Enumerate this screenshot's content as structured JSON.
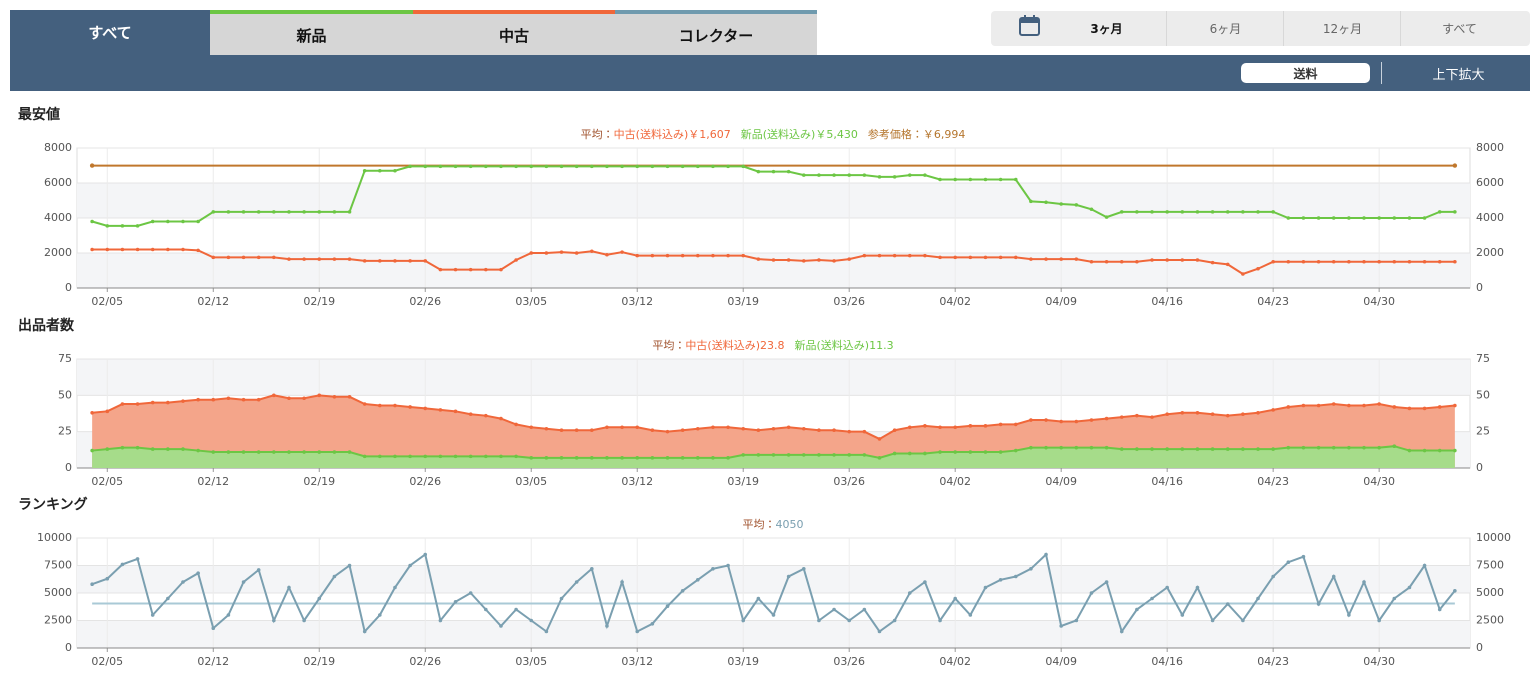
{
  "tabs": [
    "すべて",
    "新品",
    "中古",
    "コレクター"
  ],
  "ranges": [
    "3ヶ月",
    "6ヶ月",
    "12ヶ月",
    "すべて"
  ],
  "toolbar": [
    "送料",
    "上下拡大"
  ],
  "chart_data": [
    {
      "type": "line",
      "title": "最安値",
      "summary": [
        {
          "text": "平均：",
          "color": "#a0522d"
        },
        {
          "text": "中古(送料込み)￥1,607",
          "color": "#f0673a"
        },
        {
          "text": "新品(送料込み)￥5,430",
          "color": "#6cc644"
        },
        {
          "text": "参考価格：￥6,994",
          "color": "#b5762e"
        }
      ],
      "x": [
        "02/04",
        "02/05",
        "02/06",
        "02/07",
        "02/08",
        "02/09",
        "02/10",
        "02/11",
        "02/12",
        "02/13",
        "02/14",
        "02/15",
        "02/16",
        "02/17",
        "02/18",
        "02/19",
        "02/20",
        "02/21",
        "02/22",
        "02/23",
        "02/24",
        "02/25",
        "02/26",
        "02/27",
        "02/28",
        "03/01",
        "03/02",
        "03/03",
        "03/04",
        "03/05",
        "03/06",
        "03/07",
        "03/08",
        "03/09",
        "03/10",
        "03/11",
        "03/12",
        "03/13",
        "03/14",
        "03/15",
        "03/16",
        "03/17",
        "03/18",
        "03/19",
        "03/20",
        "03/21",
        "03/22",
        "03/23",
        "03/24",
        "03/25",
        "03/26",
        "03/27",
        "03/28",
        "03/29",
        "03/30",
        "03/31",
        "04/01",
        "04/02",
        "04/03",
        "04/04",
        "04/05",
        "04/06",
        "04/07",
        "04/08",
        "04/09",
        "04/10",
        "04/11",
        "04/12",
        "04/13",
        "04/14",
        "04/15",
        "04/16",
        "04/17",
        "04/18",
        "04/19",
        "04/20",
        "04/21",
        "04/22",
        "04/23",
        "04/24",
        "04/25",
        "04/26",
        "04/27",
        "04/28",
        "04/29",
        "04/30",
        "05/01",
        "05/02",
        "05/03",
        "05/04",
        "05/05"
      ],
      "series": [
        {
          "color": "#6cc644",
          "values": [
            3800,
            3550,
            3550,
            3550,
            3800,
            3800,
            3800,
            3800,
            4350,
            4350,
            4350,
            4350,
            4350,
            4350,
            4350,
            4350,
            4350,
            4350,
            6700,
            6700,
            6700,
            6950,
            6950,
            6950,
            6950,
            6950,
            6950,
            6950,
            6950,
            6950,
            6950,
            6950,
            6950,
            6950,
            6950,
            6950,
            6950,
            6950,
            6950,
            6950,
            6950,
            6950,
            6950,
            6950,
            6650,
            6650,
            6650,
            6450,
            6450,
            6450,
            6450,
            6450,
            6350,
            6350,
            6450,
            6450,
            6200,
            6200,
            6200,
            6200,
            6200,
            6200,
            4950,
            4900,
            4800,
            4750,
            4500,
            4050,
            4350,
            4350,
            4350,
            4350,
            4350,
            4350,
            4350,
            4350,
            4350,
            4350,
            4350,
            4000,
            4000,
            4000,
            4000,
            4000,
            4000,
            4000,
            4000,
            4000,
            4000,
            4350,
            4350
          ]
        },
        {
          "color": "#f0673a",
          "values": [
            2200,
            2200,
            2200,
            2200,
            2200,
            2200,
            2200,
            2150,
            1750,
            1750,
            1750,
            1750,
            1750,
            1650,
            1650,
            1650,
            1650,
            1650,
            1550,
            1550,
            1550,
            1550,
            1550,
            1050,
            1050,
            1050,
            1050,
            1050,
            1600,
            2000,
            2000,
            2050,
            2000,
            2100,
            1900,
            2050,
            1850,
            1850,
            1850,
            1850,
            1850,
            1850,
            1850,
            1850,
            1650,
            1600,
            1600,
            1550,
            1600,
            1550,
            1650,
            1850,
            1850,
            1850,
            1850,
            1850,
            1750,
            1750,
            1750,
            1750,
            1750,
            1750,
            1650,
            1650,
            1650,
            1650,
            1500,
            1500,
            1500,
            1500,
            1600,
            1600,
            1600,
            1600,
            1450,
            1350,
            800,
            1100,
            1500,
            1500,
            1500,
            1500,
            1500,
            1500,
            1500,
            1500,
            1500,
            1500,
            1500,
            1500,
            1500
          ]
        }
      ],
      "reference_price": 6994,
      "reference_color": "#c0772c",
      "xlim": [
        "02/03",
        "05/06"
      ],
      "xticks": [
        "02/05",
        "02/12",
        "02/19",
        "02/26",
        "03/05",
        "03/12",
        "03/19",
        "03/26",
        "04/02",
        "04/09",
        "04/16",
        "04/23",
        "04/30"
      ],
      "ylim": [
        0,
        8000
      ],
      "yticks": [
        0,
        2000,
        4000,
        6000,
        8000
      ],
      "grid": true,
      "bands": true
    },
    {
      "type": "area",
      "title": "出品者数",
      "summary": [
        {
          "text": "平均：",
          "color": "#a0522d"
        },
        {
          "text": "中古(送料込み)23.8",
          "color": "#f0673a"
        },
        {
          "text": "新品(送料込み)11.3",
          "color": "#6cc644"
        }
      ],
      "x": [
        "02/04",
        "02/05",
        "02/06",
        "02/07",
        "02/08",
        "02/09",
        "02/10",
        "02/11",
        "02/12",
        "02/13",
        "02/14",
        "02/15",
        "02/16",
        "02/17",
        "02/18",
        "02/19",
        "02/20",
        "02/21",
        "02/22",
        "02/23",
        "02/24",
        "02/25",
        "02/26",
        "02/27",
        "02/28",
        "03/01",
        "03/02",
        "03/03",
        "03/04",
        "03/05",
        "03/06",
        "03/07",
        "03/08",
        "03/09",
        "03/10",
        "03/11",
        "03/12",
        "03/13",
        "03/14",
        "03/15",
        "03/16",
        "03/17",
        "03/18",
        "03/19",
        "03/20",
        "03/21",
        "03/22",
        "03/23",
        "03/24",
        "03/25",
        "03/26",
        "03/27",
        "03/28",
        "03/29",
        "03/30",
        "03/31",
        "04/01",
        "04/02",
        "04/03",
        "04/04",
        "04/05",
        "04/06",
        "04/07",
        "04/08",
        "04/09",
        "04/10",
        "04/11",
        "04/12",
        "04/13",
        "04/14",
        "04/15",
        "04/16",
        "04/17",
        "04/18",
        "04/19",
        "04/20",
        "04/21",
        "04/22",
        "04/23",
        "04/24",
        "04/25",
        "04/26",
        "04/27",
        "04/28",
        "04/29",
        "04/30",
        "05/01",
        "05/02",
        "05/03",
        "05/04",
        "05/05"
      ],
      "series": [
        {
          "color": "#f0673a",
          "fill": "#f4a58a",
          "values": [
            38,
            39,
            44,
            44,
            45,
            45,
            46,
            47,
            47,
            48,
            47,
            47,
            50,
            48,
            48,
            50,
            49,
            49,
            44,
            43,
            43,
            42,
            41,
            40,
            39,
            37,
            36,
            34,
            30,
            28,
            27,
            26,
            26,
            26,
            28,
            28,
            28,
            26,
            25,
            26,
            27,
            28,
            28,
            27,
            26,
            27,
            28,
            27,
            26,
            26,
            25,
            25,
            20,
            26,
            28,
            29,
            28,
            28,
            29,
            29,
            30,
            30,
            33,
            33,
            32,
            32,
            33,
            34,
            35,
            36,
            35,
            37,
            38,
            38,
            37,
            36,
            37,
            38,
            40,
            42,
            43,
            43,
            44,
            43,
            43,
            44,
            42,
            41,
            41,
            42,
            43
          ]
        },
        {
          "color": "#6cc644",
          "fill": "#a6dc8a",
          "values": [
            12,
            13,
            14,
            14,
            13,
            13,
            13,
            12,
            11,
            11,
            11,
            11,
            11,
            11,
            11,
            11,
            11,
            11,
            8,
            8,
            8,
            8,
            8,
            8,
            8,
            8,
            8,
            8,
            8,
            7,
            7,
            7,
            7,
            7,
            7,
            7,
            7,
            7,
            7,
            7,
            7,
            7,
            7,
            9,
            9,
            9,
            9,
            9,
            9,
            9,
            9,
            9,
            7,
            10,
            10,
            10,
            11,
            11,
            11,
            11,
            11,
            12,
            14,
            14,
            14,
            14,
            14,
            14,
            13,
            13,
            13,
            13,
            13,
            13,
            13,
            13,
            13,
            13,
            13,
            14,
            14,
            14,
            14,
            14,
            14,
            14,
            15,
            12,
            12,
            12,
            12
          ]
        }
      ],
      "xlim": [
        "02/03",
        "05/06"
      ],
      "xticks": [
        "02/05",
        "02/12",
        "02/19",
        "02/26",
        "03/05",
        "03/12",
        "03/19",
        "03/26",
        "04/02",
        "04/09",
        "04/16",
        "04/23",
        "04/30"
      ],
      "ylim": [
        0,
        75
      ],
      "yticks": [
        0,
        25,
        50,
        75
      ],
      "grid": true,
      "bands": true
    },
    {
      "type": "line",
      "title": "ランキング",
      "summary": [
        {
          "text": "平均：",
          "color": "#a0522d"
        }
      ],
      "average": 4050,
      "average_color": "#7a9fb0",
      "average_line_color": "#a9c9d6",
      "x": [
        "02/04",
        "02/05",
        "02/06",
        "02/07",
        "02/08",
        "02/09",
        "02/10",
        "02/11",
        "02/12",
        "02/13",
        "02/14",
        "02/15",
        "02/16",
        "02/17",
        "02/18",
        "02/19",
        "02/20",
        "02/21",
        "02/22",
        "02/23",
        "02/24",
        "02/25",
        "02/26",
        "02/27",
        "02/28",
        "03/01",
        "03/02",
        "03/03",
        "03/04",
        "03/05",
        "03/06",
        "03/07",
        "03/08",
        "03/09",
        "03/10",
        "03/11",
        "03/12",
        "03/13",
        "03/14",
        "03/15",
        "03/16",
        "03/17",
        "03/18",
        "03/19",
        "03/20",
        "03/21",
        "03/22",
        "03/23",
        "03/24",
        "03/25",
        "03/26",
        "03/27",
        "03/28",
        "03/29",
        "03/30",
        "03/31",
        "04/01",
        "04/02",
        "04/03",
        "04/04",
        "04/05",
        "04/06",
        "04/07",
        "04/08",
        "04/09",
        "04/10",
        "04/11",
        "04/12",
        "04/13",
        "04/14",
        "04/15",
        "04/16",
        "04/17",
        "04/18",
        "04/19",
        "04/20",
        "04/21",
        "04/22",
        "04/23",
        "04/24",
        "04/25",
        "04/26",
        "04/27",
        "04/28",
        "04/29",
        "04/30",
        "05/01",
        "05/02",
        "05/03",
        "05/04",
        "05/05"
      ],
      "series": [
        {
          "color": "#7a9fb0",
          "values": [
            5800,
            6300,
            7600,
            8100,
            3000,
            4500,
            6000,
            6800,
            1800,
            3000,
            6000,
            7100,
            2500,
            5500,
            2500,
            4500,
            6500,
            7500,
            1500,
            3000,
            5500,
            7500,
            8500,
            2500,
            4200,
            5000,
            3500,
            2000,
            3500,
            2500,
            1500,
            4500,
            6000,
            7200,
            2000,
            6000,
            1500,
            2200,
            3800,
            5200,
            6200,
            7200,
            7500,
            2500,
            4500,
            3000,
            6500,
            7200,
            2500,
            3500,
            2500,
            3500,
            1500,
            2500,
            5000,
            6000,
            2500,
            4500,
            3000,
            5500,
            6200,
            6500,
            7200,
            8500,
            2000,
            2500,
            5000,
            6000,
            1500,
            3500,
            4500,
            5500,
            3000,
            5500,
            2500,
            4000,
            2500,
            4500,
            6500,
            7800,
            8300,
            4000,
            6500,
            3000,
            6000,
            2500,
            4500,
            5500,
            7500,
            3500,
            5200
          ]
        }
      ],
      "xlim": [
        "02/03",
        "05/06"
      ],
      "xticks": [
        "02/05",
        "02/12",
        "02/19",
        "02/26",
        "03/05",
        "03/12",
        "03/19",
        "03/26",
        "04/02",
        "04/09",
        "04/16",
        "04/23",
        "04/30"
      ],
      "ylim": [
        0,
        10000
      ],
      "yticks": [
        0,
        2500,
        5000,
        7500,
        10000
      ],
      "grid": true,
      "bands": true
    }
  ]
}
